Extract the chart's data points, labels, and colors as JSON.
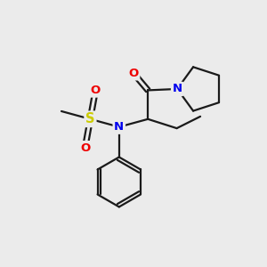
{
  "background_color": "#ebebeb",
  "bond_color": "#1a1a1a",
  "bond_width": 1.6,
  "atom_colors": {
    "N": "#0000ee",
    "O": "#ee0000",
    "S": "#cccc00"
  },
  "figsize": [
    3.0,
    3.0
  ],
  "dpi": 100,
  "xlim": [
    0,
    10
  ],
  "ylim": [
    0,
    10
  ]
}
